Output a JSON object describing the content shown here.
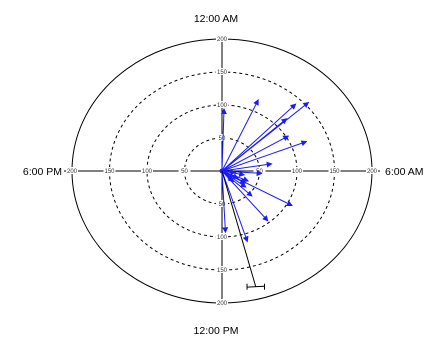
{
  "chart_data": {
    "type": "polar-vector",
    "angle_labels": {
      "top": "12:00 AM",
      "right": "6:00 AM",
      "bottom": "12:00 PM",
      "left": "6:00 PM"
    },
    "ring_values": [
      50,
      100,
      150,
      200
    ],
    "r_max": 200,
    "grid": true,
    "vector_color": "#1a1aff",
    "reference_color": "#000000",
    "vectors": [
      {
        "hour": 6.26,
        "magnitude": 53
      },
      {
        "hour": 5.38,
        "magnitude": 67
      },
      {
        "hour": 4.56,
        "magnitude": 121
      },
      {
        "hour": 3.16,
        "magnitude": 117
      },
      {
        "hour": 3.2,
        "magnitude": 155
      },
      {
        "hour": 2.94,
        "magnitude": 141
      },
      {
        "hour": 3.94,
        "magnitude": 103
      },
      {
        "hour": 1.61,
        "magnitude": 118
      },
      {
        "hour": 0.11,
        "magnitude": 94
      },
      {
        "hour": 11.81,
        "magnitude": 93
      },
      {
        "hour": 10.83,
        "magnitude": 112
      },
      {
        "hour": 9.4,
        "magnitude": 97
      },
      {
        "hour": 7.95,
        "magnitude": 107
      },
      {
        "hour": 7.56,
        "magnitude": 38
      },
      {
        "hour": 8.05,
        "magnitude": 36
      },
      {
        "hour": 7.81,
        "magnitude": 24
      },
      {
        "hour": 8.5,
        "magnitude": 40
      },
      {
        "hour": 9.1,
        "magnitude": 22
      },
      {
        "hour": 8.9,
        "magnitude": 55
      },
      {
        "hour": 8.9,
        "magnitude": 20
      },
      {
        "hour": 6.75,
        "magnitude": 30
      },
      {
        "hour": 6.5,
        "magnitude": 18
      }
    ],
    "reference_vector": {
      "hour": 11.04,
      "magnitude": 181
    }
  }
}
